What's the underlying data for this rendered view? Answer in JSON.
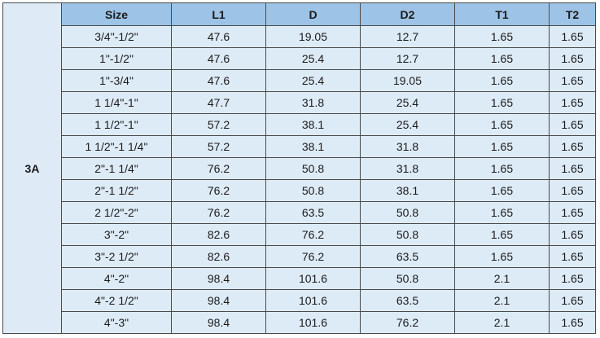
{
  "table": {
    "group": "3A",
    "headers": [
      "Size",
      "L1",
      "D",
      "D2",
      "T1",
      "T2"
    ],
    "rows": [
      [
        "3/4\"-1/2\"",
        "47.6",
        "19.05",
        "12.7",
        "1.65",
        "1.65"
      ],
      [
        "1\"-1/2\"",
        "47.6",
        "25.4",
        "12.7",
        "1.65",
        "1.65"
      ],
      [
        "1\"-3/4\"",
        "47.6",
        "25.4",
        "19.05",
        "1.65",
        "1.65"
      ],
      [
        "1 1/4\"-1\"",
        "47.7",
        "31.8",
        "25.4",
        "1.65",
        "1.65"
      ],
      [
        "1 1/2\"-1\"",
        "57.2",
        "38.1",
        "25.4",
        "1.65",
        "1.65"
      ],
      [
        "1 1/2\"-1 1/4\"",
        "57.2",
        "38.1",
        "31.8",
        "1.65",
        "1.65"
      ],
      [
        "2\"-1 1/4\"",
        "76.2",
        "50.8",
        "31.8",
        "1.65",
        "1.65"
      ],
      [
        "2\"-1 1/2\"",
        "76.2",
        "50.8",
        "38.1",
        "1.65",
        "1.65"
      ],
      [
        "2 1/2\"-2\"",
        "76.2",
        "63.5",
        "50.8",
        "1.65",
        "1.65"
      ],
      [
        "3\"-2\"",
        "82.6",
        "76.2",
        "50.8",
        "1.65",
        "1.65"
      ],
      [
        "3\"-2 1/2\"",
        "82.6",
        "76.2",
        "63.5",
        "1.65",
        "1.65"
      ],
      [
        "4\"-2\"",
        "98.4",
        "101.6",
        "50.8",
        "2.1",
        "1.65"
      ],
      [
        "4\"-2 1/2\"",
        "98.4",
        "101.6",
        "63.5",
        "2.1",
        "1.65"
      ],
      [
        "4\"-3\"",
        "98.4",
        "101.6",
        "76.2",
        "2.1",
        "1.65"
      ]
    ]
  }
}
